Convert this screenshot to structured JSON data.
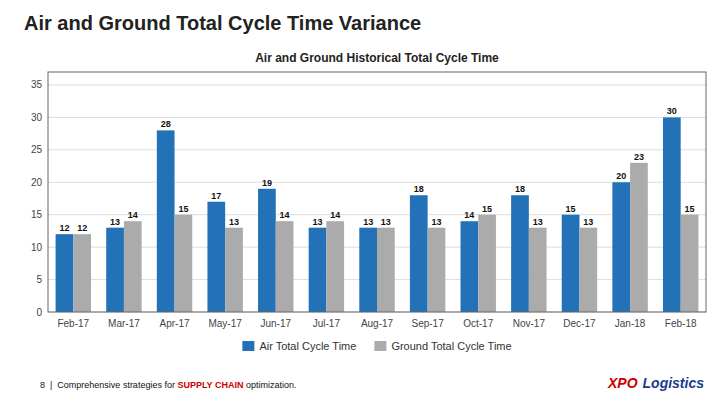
{
  "chart_data": {
    "type": "bar",
    "title": "Air and Ground Total Cycle Time Variance",
    "subtitle": "Air and Ground Historical Total Cycle Time",
    "categories": [
      "Feb-17",
      "Mar-17",
      "Apr-17",
      "May-17",
      "Jun-17",
      "Jul-17",
      "Aug-17",
      "Sep-17",
      "Oct-17",
      "Nov-17",
      "Dec-17",
      "Jan-18",
      "Feb-18"
    ],
    "series": [
      {
        "name": "Air Total Cycle Time",
        "color": "#2372B8",
        "values": [
          12,
          13,
          28,
          17,
          19,
          13,
          13,
          18,
          14,
          18,
          15,
          20,
          30
        ]
      },
      {
        "name": "Ground Total Cycle Time",
        "color": "#ABABAB",
        "values": [
          12,
          14,
          15,
          13,
          14,
          14,
          13,
          13,
          15,
          13,
          13,
          23,
          15
        ]
      }
    ],
    "ylim": [
      0,
      37
    ],
    "yticks": [
      0,
      5,
      10,
      15,
      20,
      25,
      30,
      35
    ],
    "grid": true,
    "data_labels": true,
    "legend": "bottom",
    "annotations": [
      {
        "text": "8  |  Comprehensive strategies for "
      },
      {
        "text": "SUPPLY CHAIN",
        "color": "#CC0000"
      },
      {
        "text": " optimization."
      },
      {
        "text": "XPO",
        "color": "#CC0000"
      },
      {
        "text": "Logistics",
        "color": "#1A3B8C"
      }
    ]
  }
}
